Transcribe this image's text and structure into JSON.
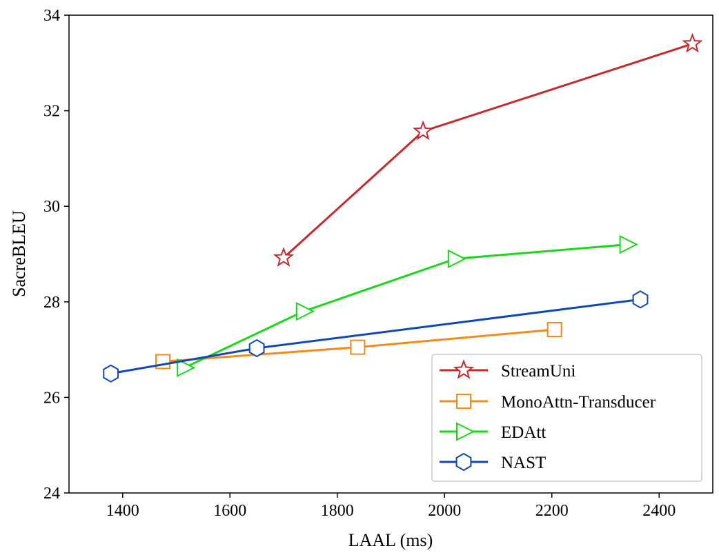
{
  "chart_data": {
    "type": "line",
    "title": "",
    "xlabel": "LAAL (ms)",
    "ylabel": "SacreBLEU",
    "xlim": [
      1300,
      2500
    ],
    "ylim": [
      24,
      34
    ],
    "xticks": [
      1400,
      1600,
      1800,
      2000,
      2200,
      2400
    ],
    "yticks": [
      24,
      26,
      28,
      30,
      32,
      34
    ],
    "grid": false,
    "legend_position": "bottom-right",
    "series": [
      {
        "name": "StreamUni",
        "color": "#c8282c",
        "marker": "star",
        "x": [
          1700,
          1960,
          2462
        ],
        "y": [
          28.92,
          31.57,
          33.4
        ]
      },
      {
        "name": "MonoAttn-Transducer",
        "color": "#f58a16",
        "marker": "square",
        "x": [
          1475,
          1838,
          2205
        ],
        "y": [
          26.75,
          27.05,
          27.42
        ]
      },
      {
        "name": "EDAtt",
        "color": "#18d818",
        "marker": "triangle-right",
        "x": [
          1515,
          1737,
          2020,
          2340
        ],
        "y": [
          26.62,
          27.8,
          28.9,
          29.2
        ]
      },
      {
        "name": "NAST",
        "color": "#0f47b8",
        "marker": "hexagon",
        "x": [
          1378,
          1650,
          2365
        ],
        "y": [
          26.5,
          27.03,
          28.05
        ]
      }
    ]
  }
}
